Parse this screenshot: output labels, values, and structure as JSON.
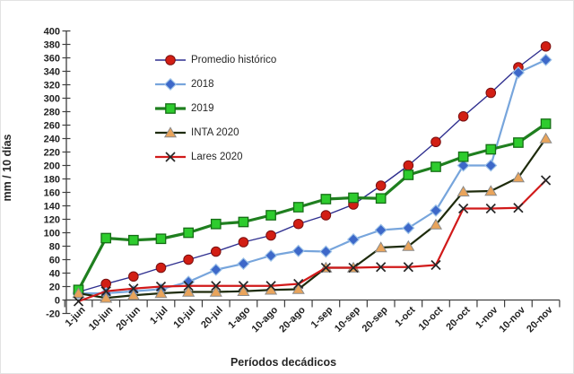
{
  "chart_data": {
    "type": "line",
    "title": "",
    "xlabel": "Períodos decádicos",
    "ylabel": "mm / 10 días",
    "ylim": [
      -20,
      400
    ],
    "ytick_step": 20,
    "grid": false,
    "legend_position": "inside-upper-left",
    "categories": [
      "1-jun",
      "10-jun",
      "20-jun",
      "1-jul",
      "10-jul",
      "20-jul",
      "1-ago",
      "10-ago",
      "20-ago",
      "1-sep",
      "10-sep",
      "20-sep",
      "1-oct",
      "10-oct",
      "20-oct",
      "1-nov",
      "10-nov",
      "20-nov"
    ],
    "series": [
      {
        "name": "Promedio histórico",
        "marker": "circle",
        "line_color": "#2F2F8F",
        "line_width": 1.4,
        "marker_color": "#D21E14",
        "marker_border": "#7A1010",
        "values": [
          12,
          24,
          35,
          48,
          60,
          72,
          86,
          96,
          113,
          126,
          142,
          170,
          200,
          235,
          273,
          308,
          346,
          377
        ]
      },
      {
        "name": "2018",
        "marker": "diamond",
        "line_color": "#77A5DC",
        "line_width": 2.2,
        "marker_color": "#3D68C9",
        "marker_border": "#9CC2E8",
        "values": [
          10,
          10,
          13,
          16,
          27,
          45,
          54,
          66,
          73,
          72,
          90,
          104,
          107,
          133,
          200,
          200,
          338,
          357
        ]
      },
      {
        "name": "2019",
        "marker": "square",
        "line_color": "#1F7F1F",
        "line_width": 3.2,
        "marker_color": "#2ECC2E",
        "marker_border": "#156E15",
        "values": [
          15,
          92,
          89,
          91,
          100,
          113,
          116,
          126,
          138,
          150,
          152,
          151,
          186,
          198,
          213,
          224,
          234,
          262
        ]
      },
      {
        "name": "INTA 2020",
        "marker": "triangle",
        "line_color": "#1E2B0C",
        "line_width": 2.2,
        "marker_color": "#E9A45B",
        "marker_border": "#8A8A8A",
        "values": [
          10,
          3,
          7,
          10,
          12,
          12,
          13,
          15,
          16,
          48,
          48,
          78,
          80,
          112,
          161,
          162,
          182,
          240
        ]
      },
      {
        "name": "Lares 2020",
        "marker": "xcross",
        "line_color": "#D11A1A",
        "line_width": 2.2,
        "marker_color": "#262626",
        "marker_border": "#262626",
        "values": [
          -2,
          13,
          17,
          20,
          21,
          21,
          21,
          21,
          24,
          48,
          48,
          49,
          49,
          52,
          136,
          136,
          137,
          178
        ]
      }
    ]
  },
  "style": {
    "axis_color": "#3F3F3F",
    "tick_label_color": "#1F1F1F"
  }
}
